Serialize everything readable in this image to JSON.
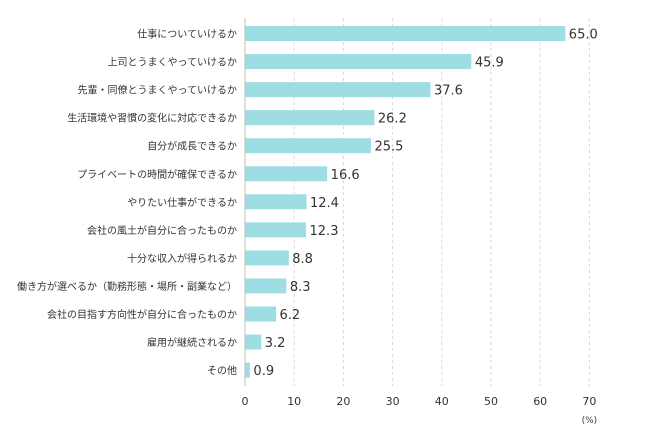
{
  "chart_data": {
    "type": "bar",
    "orientation": "horizontal",
    "categories": [
      "仕事についていけるか",
      "上司とうまくやっていけるか",
      "先輩・同僚とうまくやっていけるか",
      "生活環境や習慣の変化に対応できるか",
      "自分が成長できるか",
      "プライベートの時間が確保できるか",
      "やりたい仕事ができるか",
      "会社の風土が自分に合ったものか",
      "十分な収入が得られるか",
      "働き方が選べるか（勤務形態・場所・副業など）",
      "会社の目指す方向性が自分に合ったものか",
      "雇用が継続されるか",
      "その他"
    ],
    "values": [
      65.0,
      45.9,
      37.6,
      26.2,
      25.5,
      16.6,
      12.4,
      12.3,
      8.8,
      8.3,
      6.2,
      3.2,
      0.9
    ],
    "value_labels": [
      "65.0",
      "45.9",
      "37.6",
      "26.2",
      "25.5",
      "16.6",
      "12.4",
      "12.3",
      "8.8",
      "8.3",
      "6.2",
      "3.2",
      "0.9"
    ],
    "xlim": [
      0,
      70
    ],
    "xticks": [
      0,
      10,
      20,
      30,
      40,
      50,
      60,
      70
    ],
    "unit_label": "(%)",
    "grid": "vertical dashed",
    "bar_color": "#9fdde4",
    "grid_color": "#d9d9d9",
    "axis_color": "#bfbfbf",
    "text_color": "#333333"
  }
}
